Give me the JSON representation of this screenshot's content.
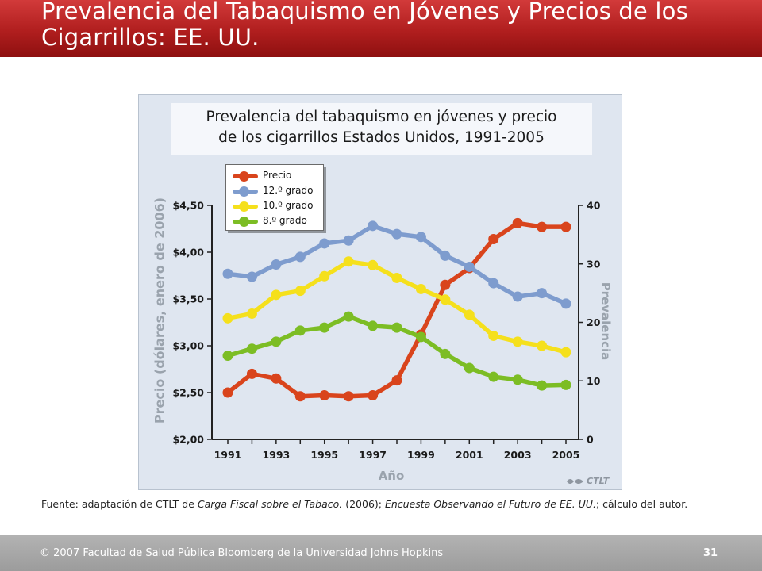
{
  "slide": {
    "title": "Prevalencia del Tabaquismo en Jóvenes y Precios de los Cigarrillos: EE. UU.",
    "source_prefix": "Fuente: adaptación de CTLT de ",
    "source_work1": "Carga Fiscal sobre el Tabaco.",
    "source_mid": " (2006); ",
    "source_work2": "Encuesta Observando el Futuro de EE. UU.",
    "source_suffix": "; cálculo del autor.",
    "footer": "© 2007 Facultad de Salud Pública Bloomberg de la Universidad Johns Hopkins",
    "page_number": "31",
    "logo_text": "CTLT"
  },
  "colors": {
    "title_bar": "#b01e1e",
    "chart_background": "#dfe6f0",
    "precio": "#d9441c",
    "grado12": "#7e9cce",
    "grado10": "#f5e01c",
    "grado8": "#7cbd24",
    "axis_title": "#9aa3ad"
  },
  "chart_data": {
    "type": "line",
    "title": "Prevalencia del tabaquismo en jóvenes y precio\nde los cigarrillos Estados Unidos, 1991-2005",
    "xlabel": "Año",
    "ylabel_left": "Precio (dólares, enero de 2006)",
    "ylabel_right": "Prevalencia",
    "x": [
      1991,
      1992,
      1993,
      1994,
      1995,
      1996,
      1997,
      1998,
      1999,
      2000,
      2001,
      2002,
      2003,
      2004,
      2005
    ],
    "x_tick_labels": [
      "1991",
      "1993",
      "1995",
      "1997",
      "1999",
      "2001",
      "2003",
      "2005"
    ],
    "y_left_ticks": [
      "$2,00",
      "$2,50",
      "$3,00",
      "$3,50",
      "$4,00",
      "$4,50"
    ],
    "y_left_range": [
      2.0,
      4.5
    ],
    "y_right_ticks": [
      "0",
      "10",
      "20",
      "30",
      "40"
    ],
    "y_right_range": [
      0,
      40
    ],
    "grid": false,
    "legend_position": "top-left",
    "series": [
      {
        "name": "Precio",
        "axis": "left",
        "color": "#d9441c",
        "values": [
          2.5,
          2.7,
          2.65,
          2.46,
          2.47,
          2.46,
          2.47,
          2.63,
          3.12,
          3.65,
          3.83,
          4.14,
          4.31,
          4.27,
          4.27
        ]
      },
      {
        "name": "12.º grado",
        "axis": "right",
        "color": "#7e9cce",
        "values": [
          28.3,
          27.8,
          29.9,
          31.2,
          33.5,
          34.0,
          36.5,
          35.1,
          34.6,
          31.4,
          29.5,
          26.7,
          24.4,
          25.0,
          23.2
        ]
      },
      {
        "name": "10.º grado",
        "axis": "right",
        "color": "#f5e01c",
        "values": [
          20.7,
          21.5,
          24.7,
          25.4,
          27.9,
          30.4,
          29.8,
          27.6,
          25.7,
          23.9,
          21.3,
          17.7,
          16.7,
          16.0,
          14.9
        ]
      },
      {
        "name": "8.º grado",
        "axis": "right",
        "color": "#7cbd24",
        "values": [
          14.3,
          15.5,
          16.7,
          18.6,
          19.1,
          21.0,
          19.4,
          19.1,
          17.5,
          14.6,
          12.2,
          10.7,
          10.2,
          9.2,
          9.3
        ]
      }
    ]
  }
}
